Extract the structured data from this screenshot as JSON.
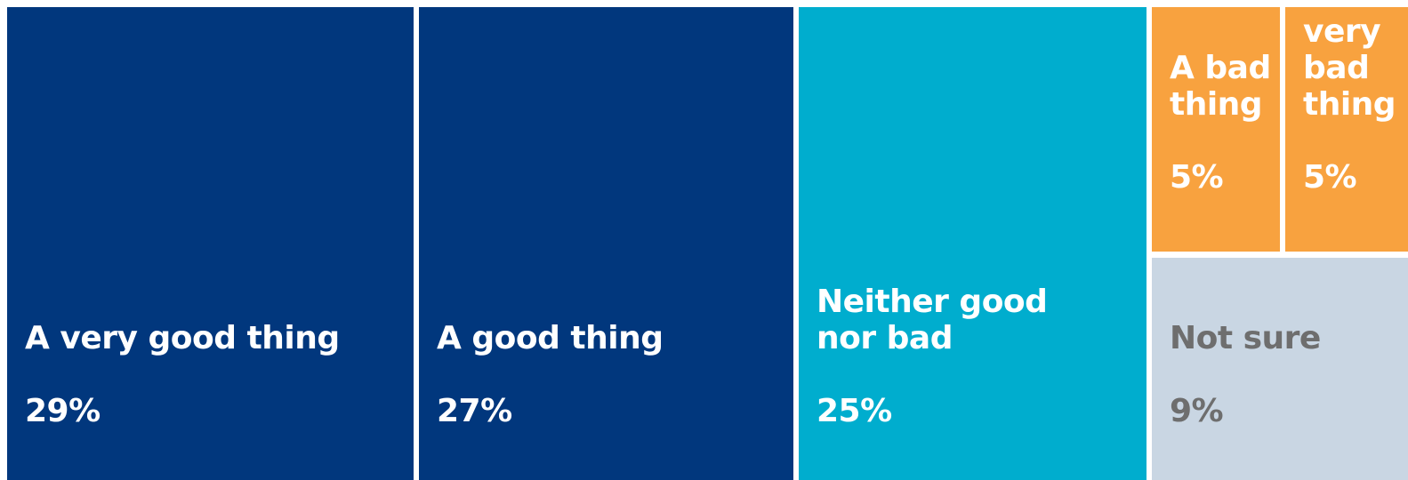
{
  "chart_data": {
    "type": "treemap",
    "title": "",
    "unit": "%",
    "items": [
      {
        "label": "A very good thing",
        "value": 29,
        "value_label": "29%",
        "color": "#01377D"
      },
      {
        "label": "A good thing",
        "value": 27,
        "value_label": "27%",
        "color": "#01377D"
      },
      {
        "label": "Neither good nor bad",
        "value": 25,
        "value_label": "25%",
        "color": "#00ADCE"
      },
      {
        "label": "A bad thing",
        "value": 5,
        "value_label": "5%",
        "color": "#F8A23F"
      },
      {
        "label": "A very bad thing",
        "value": 5,
        "value_label": "5%",
        "color": "#F8A23F"
      },
      {
        "label": "Not sure",
        "value": 9,
        "value_label": "9%",
        "color": "#C9D6E3"
      }
    ]
  }
}
